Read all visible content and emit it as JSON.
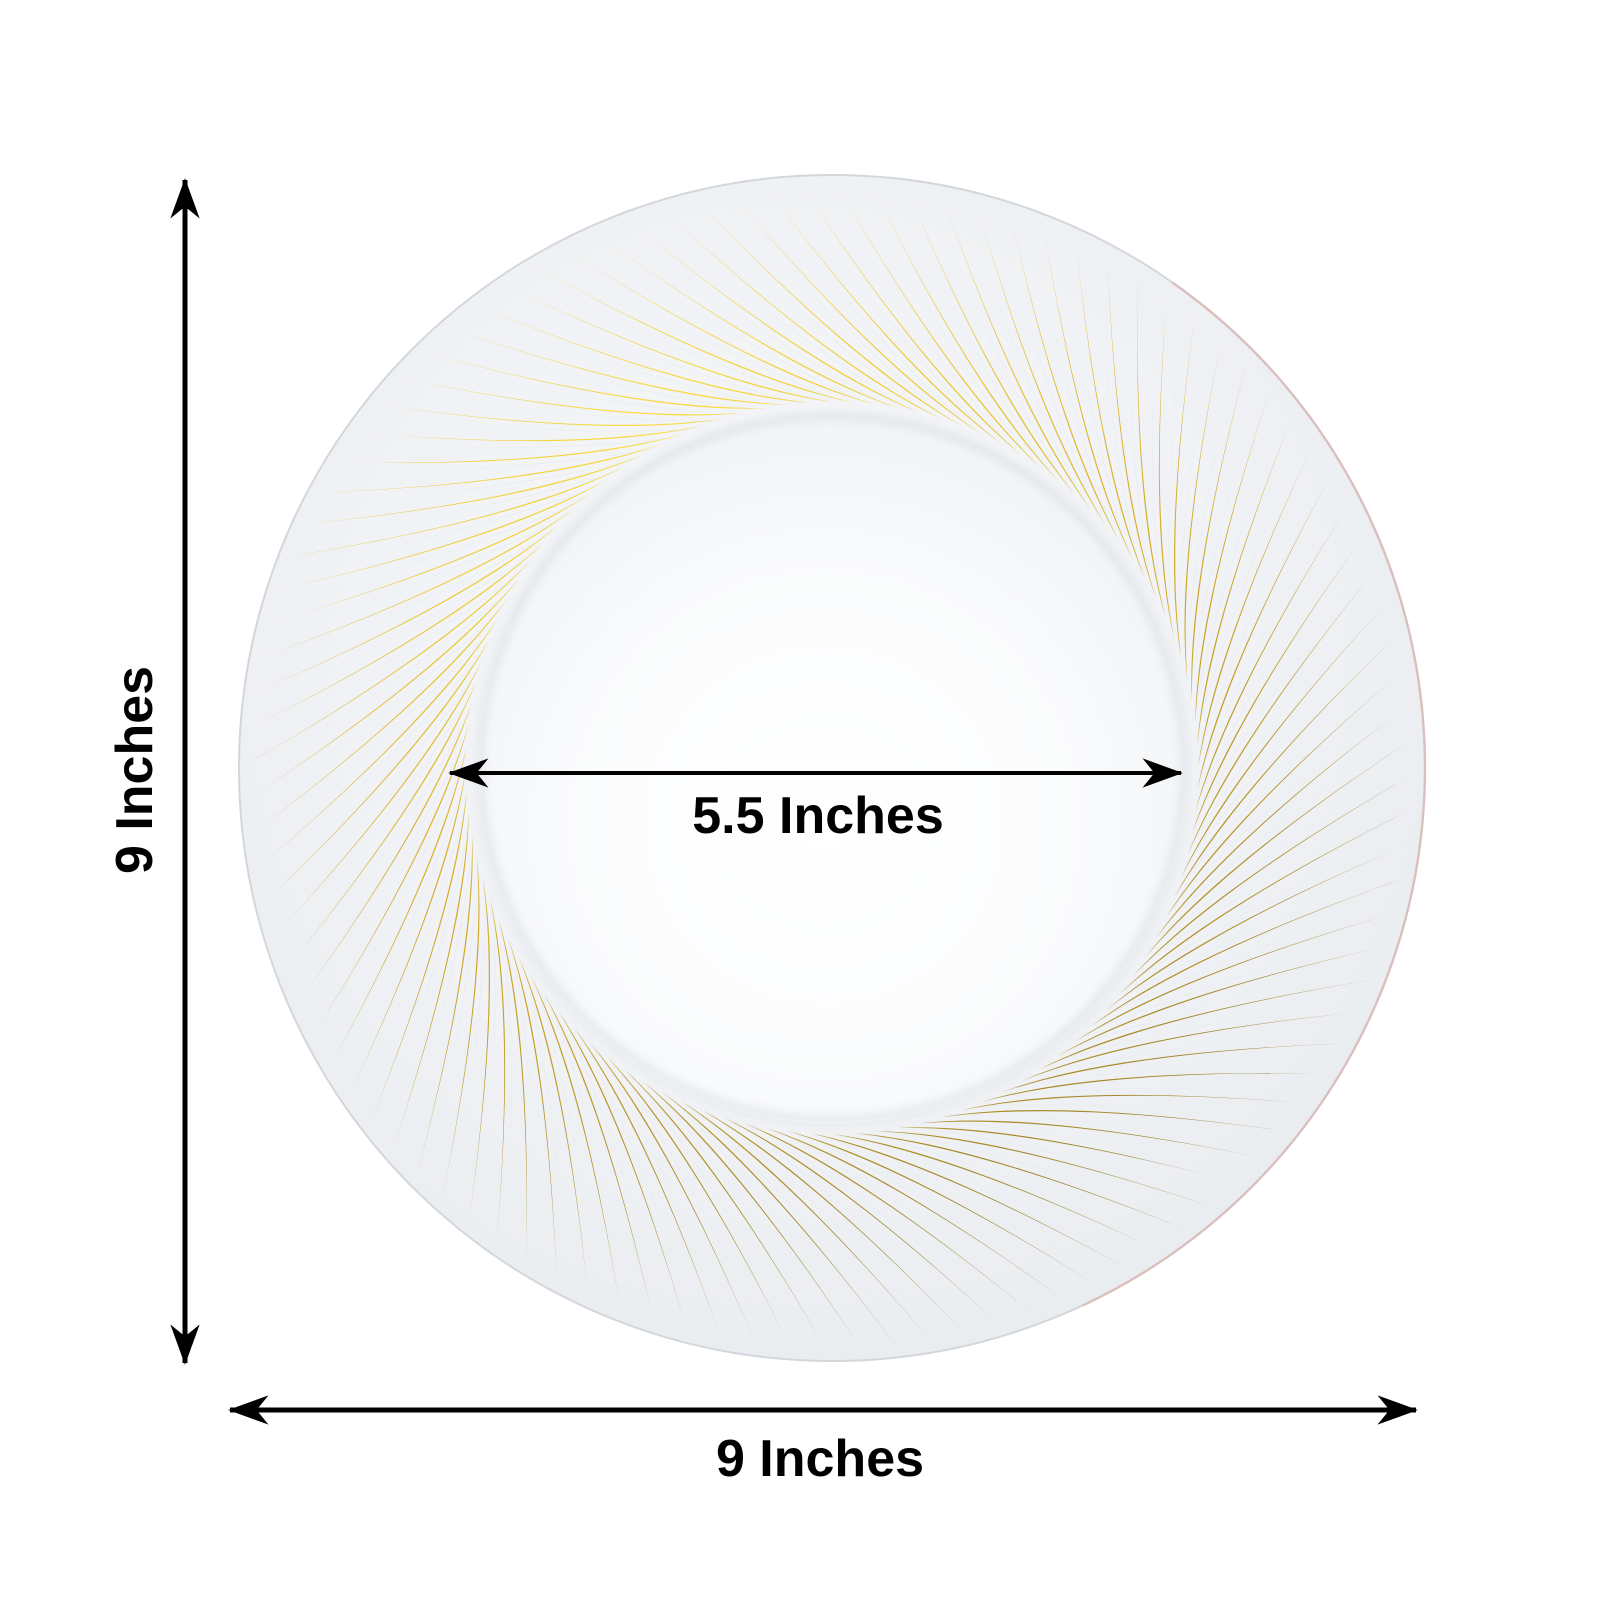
{
  "page": {
    "background_color": "#ffffff"
  },
  "diagram": {
    "kind": "plate-dimension-diagram",
    "dimensions": {
      "height_label": "9 Inches",
      "width_label": "9 Inches",
      "inner_diameter_label": "5.5 Inches"
    },
    "colors": {
      "text": "#000000",
      "arrow": "#000000",
      "plate_base_white": "#f0f2f5",
      "plate_inner_white": "#fdfdfe",
      "rim_gold_bright": "#f8dc46",
      "rim_gold": "#d8b32e",
      "rim_gold_dark": "#857430",
      "ridge_shadow": "#e3e7ec",
      "edge_tint_pink": "#dda89e"
    }
  }
}
